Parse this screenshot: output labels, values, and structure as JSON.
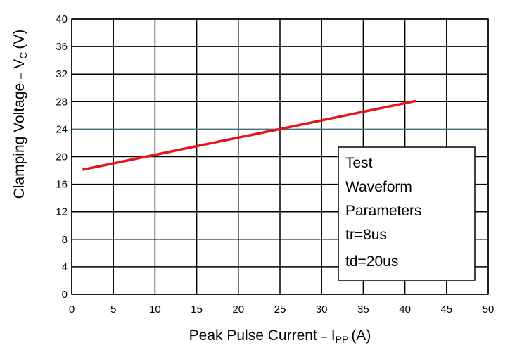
{
  "chart_data": {
    "type": "line",
    "xlabel": {
      "main": "Peak Pulse Current",
      "dash": "–",
      "symbol": "I",
      "subscript": "PP",
      "unit": "(A)"
    },
    "ylabel": {
      "main": "Clamping Voltage",
      "dash": "–",
      "symbol": "V",
      "subscript": "C",
      "unit": "(V)"
    },
    "xlim": [
      0,
      50
    ],
    "ylim": [
      0,
      40
    ],
    "x_ticks": [
      "0",
      "5",
      "10",
      "15",
      "20",
      "25",
      "30",
      "35",
      "40",
      "45",
      "50"
    ],
    "y_ticks": [
      "0",
      "4",
      "8",
      "12",
      "16",
      "20",
      "24",
      "28",
      "32",
      "36",
      "40"
    ],
    "grid": true,
    "highlight_line_y": 24,
    "highlight_color": "#3f6f7a",
    "series": [
      {
        "color": "#e8141c",
        "x": [
          1.3,
          41.3
        ],
        "y": [
          18.1,
          28.1
        ]
      }
    ],
    "annotation_box": {
      "lines": [
        "Test",
        "Waveform",
        "Parameters",
        "tr=8us",
        "td=20us"
      ]
    }
  }
}
